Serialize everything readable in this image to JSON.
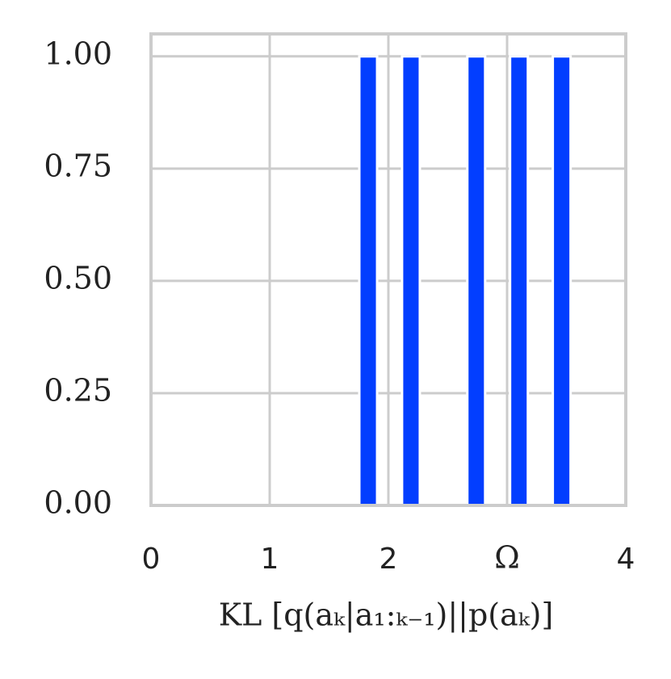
{
  "chart_data": {
    "type": "bar",
    "x": [
      1.83,
      2.19,
      2.74,
      3.1,
      3.46
    ],
    "values": [
      1,
      1,
      1,
      1,
      1
    ],
    "bar_width": 0.15,
    "color": "#023eff",
    "xlim": [
      0,
      4
    ],
    "xticks": [
      0,
      1,
      2,
      {
        "value": 3,
        "label": "Ω"
      },
      4
    ],
    "ylim": [
      0,
      1.05
    ],
    "yticks": [
      {
        "value": 0,
        "label": "0.00"
      },
      {
        "value": 0.25,
        "label": "0.25"
      },
      {
        "value": 0.5,
        "label": "0.50"
      },
      {
        "value": 0.75,
        "label": "0.75"
      },
      {
        "value": 1,
        "label": "1.00"
      }
    ],
    "xlabel": "KL [q(aₖ|a₁:ₖ₋₁)||p(aₖ)]",
    "grid": true
  }
}
